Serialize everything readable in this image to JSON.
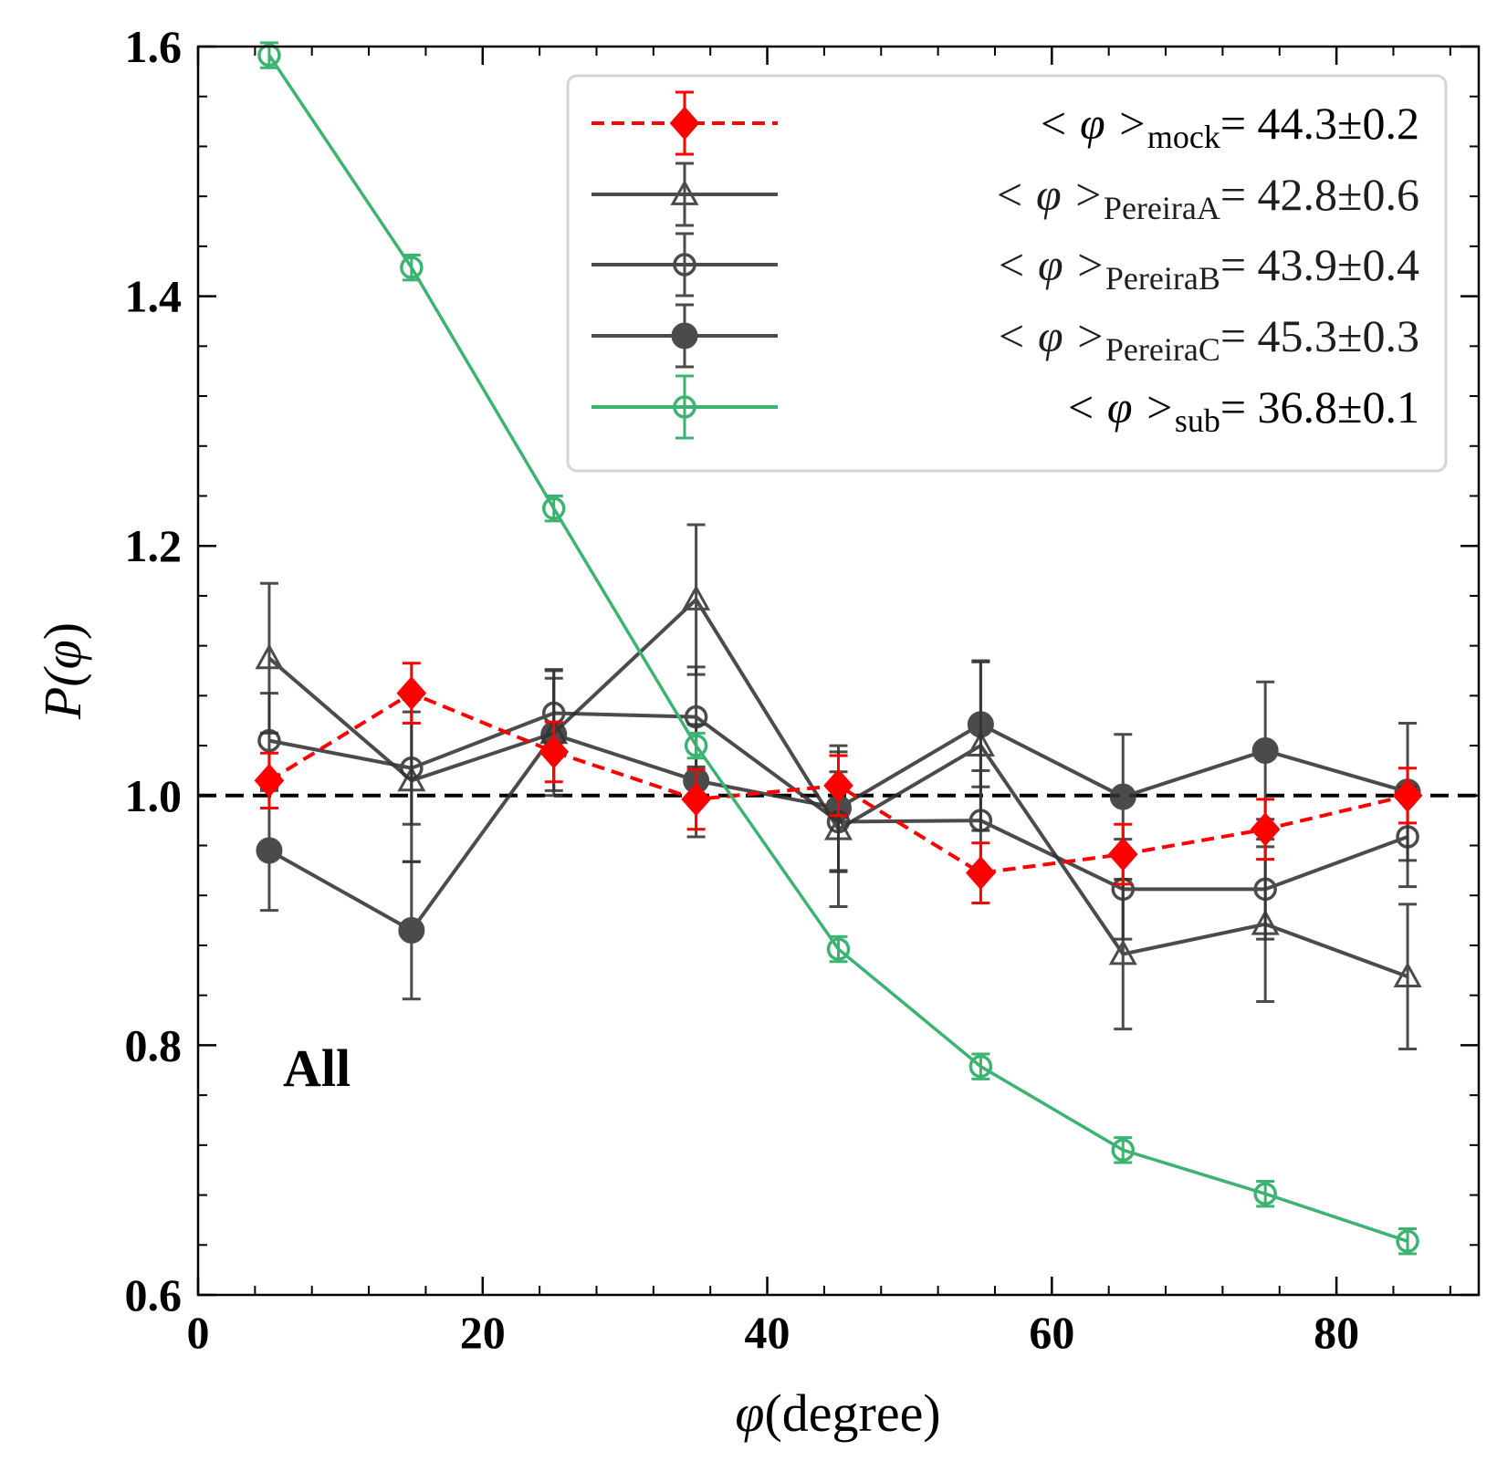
{
  "chart_data": {
    "type": "line",
    "xlabel_symbol": "φ",
    "xlabel_text": "(degree)",
    "ylabel_prefix": "P(",
    "ylabel_symbol": "φ",
    "ylabel_suffix": ")",
    "xlim": [
      0,
      90
    ],
    "ylim": [
      0.6,
      1.6
    ],
    "xticks": [
      0,
      20,
      40,
      60,
      80
    ],
    "xtick_labels": [
      "0",
      "20",
      "40",
      "60",
      "80"
    ],
    "yticks": [
      0.6,
      0.8,
      1.0,
      1.2,
      1.4,
      1.6
    ],
    "ytick_labels": [
      "0.6",
      "0.8",
      "1.0",
      "1.2",
      "1.4",
      "1.6"
    ],
    "annotation": "All",
    "reference_line": {
      "y": 1.0,
      "style": "dashed",
      "color": "#000000"
    },
    "legend_placement": "top-right",
    "x": [
      5,
      15,
      25,
      35,
      45,
      55,
      65,
      75,
      85
    ],
    "series": [
      {
        "name": "mock",
        "legend_prefix": "< φ >",
        "legend_subscript": "mock",
        "legend_value": "= 44.3±0.2",
        "color": "#ff0000",
        "marker": "diamond",
        "linestyle": "dashed",
        "values": [
          1.012,
          1.082,
          1.035,
          0.997,
          1.008,
          0.938,
          0.953,
          0.973,
          1.0
        ],
        "errors": [
          0.022,
          0.024,
          0.024,
          0.024,
          0.024,
          0.024,
          0.024,
          0.024,
          0.022
        ]
      },
      {
        "name": "PereiraA",
        "legend_prefix": "< φ >",
        "legend_subscript": "PereiraA",
        "legend_value": "= 42.8±0.6",
        "color": "#333333",
        "marker": "triangle-open",
        "linestyle": "solid",
        "values": [
          1.11,
          1.012,
          1.05,
          1.157,
          0.973,
          1.04,
          0.873,
          0.897,
          0.855
        ],
        "errors": [
          0.06,
          0.065,
          0.05,
          0.06,
          0.062,
          0.068,
          0.06,
          0.062,
          0.058
        ]
      },
      {
        "name": "PereiraB",
        "legend_prefix": "< φ >",
        "legend_subscript": "PereiraB",
        "legend_value": "= 43.9±0.4",
        "color": "#333333",
        "marker": "circle-open",
        "linestyle": "solid",
        "values": [
          1.044,
          1.022,
          1.066,
          1.063,
          0.979,
          0.98,
          0.925,
          0.925,
          0.967
        ],
        "errors": [
          0.038,
          0.045,
          0.035,
          0.04,
          0.04,
          0.04,
          0.04,
          0.04,
          0.04
        ]
      },
      {
        "name": "PereiraC",
        "legend_prefix": "< φ >",
        "legend_subscript": "PereiraC",
        "legend_value": "= 45.3±0.3",
        "color": "#333333",
        "marker": "circle-filled",
        "linestyle": "solid",
        "values": [
          0.956,
          0.892,
          1.049,
          1.012,
          0.99,
          1.057,
          0.999,
          1.036,
          1.003
        ],
        "errors": [
          0.048,
          0.055,
          0.045,
          0.045,
          0.05,
          0.05,
          0.05,
          0.055,
          0.055
        ]
      },
      {
        "name": "sub",
        "legend_prefix": "< φ >",
        "legend_subscript": "sub",
        "legend_value": "= 36.8±0.1",
        "color": "#3cb371",
        "marker": "circle-open",
        "linestyle": "solid",
        "values": [
          1.593,
          1.423,
          1.23,
          1.04,
          0.877,
          0.783,
          0.716,
          0.681,
          0.643
        ],
        "errors": [
          0.01,
          0.01,
          0.01,
          0.01,
          0.01,
          0.01,
          0.01,
          0.01,
          0.01
        ]
      }
    ]
  }
}
